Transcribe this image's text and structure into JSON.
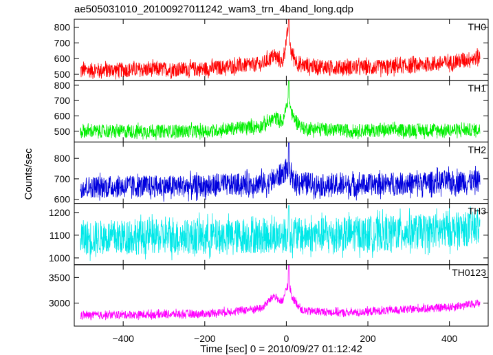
{
  "title": "ae505031010_20100927011242_wam3_trn_4band_long.qdp",
  "ylabel": "Counts/sec",
  "xlabel": "Time [sec] 0 = 2010/09/27 01:12:42",
  "chart_data": {
    "type": "line",
    "title": "ae505031010_20100927011242_wam3_trn_4band_long.qdp",
    "xlabel": "Time [sec] 0 = 2010/09/27 01:12:42",
    "ylabel": "Counts/sec",
    "xlim": [
      -520,
      495
    ],
    "x_ticks": [
      -400,
      -200,
      0,
      200,
      400
    ],
    "x_tick_labels": [
      "−400",
      "−200",
      "0",
      "200",
      "400"
    ],
    "x_range": [
      -505,
      475
    ],
    "grid": false,
    "panels": [
      {
        "name": "TH0",
        "color": "#ff0000",
        "ylim": [
          460,
          850
        ],
        "yticks": [
          500,
          600,
          700,
          800
        ],
        "baseline": [
          [
            -505,
            525
          ],
          [
            -200,
            535
          ],
          [
            -60,
            565
          ],
          [
            -30,
            620
          ],
          [
            -10,
            570
          ],
          [
            5,
            790
          ],
          [
            12,
            640
          ],
          [
            30,
            560
          ],
          [
            100,
            545
          ],
          [
            250,
            545
          ],
          [
            400,
            575
          ],
          [
            475,
            610
          ]
        ],
        "noise": 28,
        "peak": {
          "x": 6,
          "y": 850
        }
      },
      {
        "name": "TH1",
        "color": "#00ee00",
        "ylim": [
          430,
          830
        ],
        "yticks": [
          500,
          600,
          700,
          800
        ],
        "baseline": [
          [
            -505,
            500
          ],
          [
            -200,
            500
          ],
          [
            -60,
            535
          ],
          [
            -25,
            590
          ],
          [
            -8,
            560
          ],
          [
            5,
            720
          ],
          [
            15,
            600
          ],
          [
            40,
            520
          ],
          [
            150,
            505
          ],
          [
            475,
            510
          ]
        ],
        "noise": 25,
        "peak": {
          "x": 6,
          "y": 830
        }
      },
      {
        "name": "TH2",
        "color": "#0000dd",
        "ylim": [
          580,
          880
        ],
        "yticks": [
          600,
          700,
          800
        ],
        "baseline": [
          [
            -505,
            660
          ],
          [
            -200,
            665
          ],
          [
            -40,
            680
          ],
          [
            5,
            750
          ],
          [
            15,
            690
          ],
          [
            100,
            665
          ],
          [
            475,
            690
          ]
        ],
        "noise": 32,
        "peak": {
          "x": 6,
          "y": 875
        }
      },
      {
        "name": "TH3",
        "color": "#00e8e8",
        "ylim": [
          970,
          1240
        ],
        "yticks": [
          1000,
          1100,
          1200
        ],
        "baseline": [
          [
            -505,
            1090
          ],
          [
            -100,
            1095
          ],
          [
            200,
            1105
          ],
          [
            475,
            1130
          ]
        ],
        "noise": 45,
        "peak": {
          "x": 6,
          "y": 1230
        }
      },
      {
        "name": "TH0123",
        "color": "#ff00ff",
        "ylim": [
          2550,
          3750
        ],
        "yticks": [
          3000,
          3500
        ],
        "baseline": [
          [
            -505,
            2760
          ],
          [
            -200,
            2790
          ],
          [
            -60,
            2900
          ],
          [
            -30,
            3150
          ],
          [
            -10,
            3000
          ],
          [
            5,
            3400
          ],
          [
            15,
            3100
          ],
          [
            40,
            2850
          ],
          [
            150,
            2810
          ],
          [
            400,
            2920
          ],
          [
            475,
            3000
          ]
        ],
        "noise": 45,
        "peak": {
          "x": 6,
          "y": 3750
        }
      }
    ]
  }
}
